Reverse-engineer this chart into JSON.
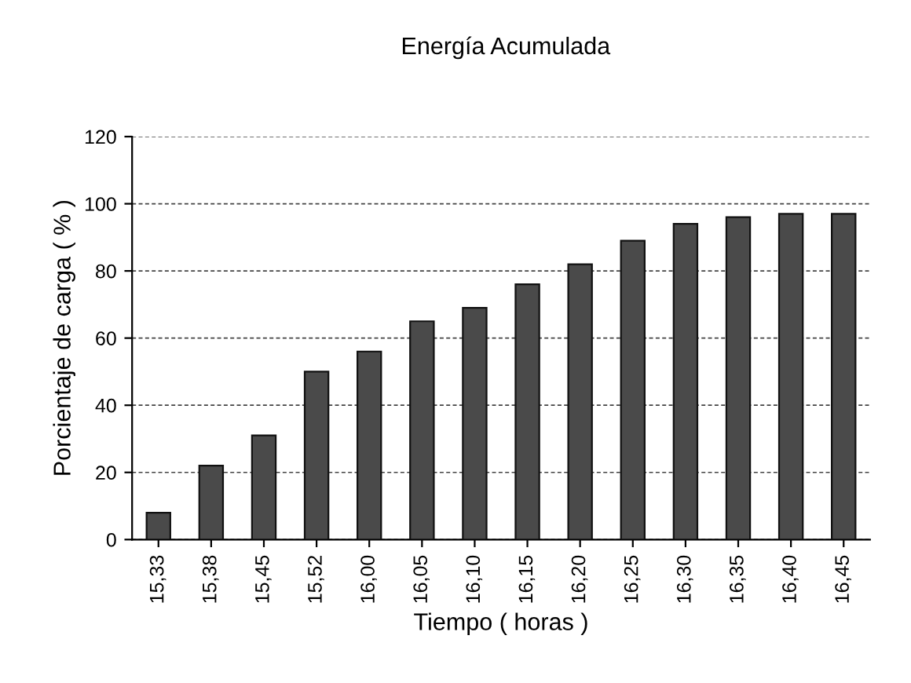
{
  "chart_data": {
    "type": "bar",
    "title": "Energía Acumulada",
    "xlabel": "Tiempo ( horas )",
    "ylabel": "Porcientaje de carga ( % )",
    "categories": [
      "15,33",
      "15,38",
      "15,45",
      "15,52",
      "16,00",
      "16,05",
      "16,10",
      "16,15",
      "16,20",
      "16,25",
      "16,30",
      "16,35",
      "16,40",
      "16,45"
    ],
    "values": [
      8,
      22,
      31,
      50,
      56,
      65,
      69,
      76,
      82,
      89,
      94,
      96,
      97,
      97
    ],
    "color": "#4a4a4a",
    "ylim": [
      0,
      120
    ],
    "yticks": [
      0,
      20,
      40,
      60,
      80,
      100,
      120
    ],
    "grid": "y",
    "legend": false
  }
}
